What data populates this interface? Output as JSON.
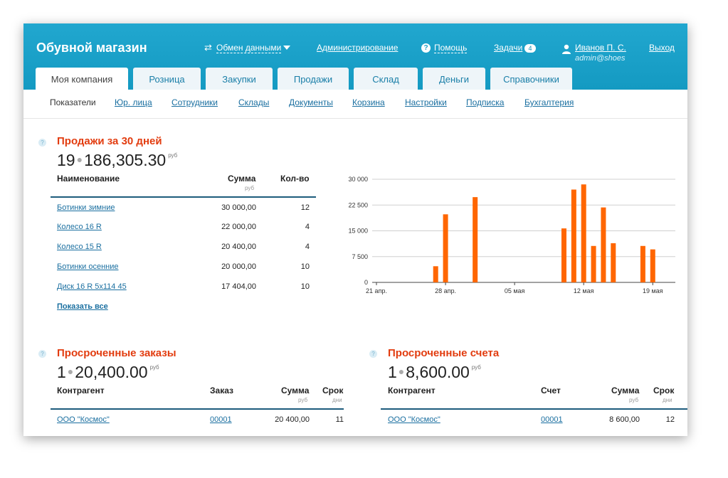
{
  "header": {
    "brand": "Обувной магазин",
    "exchange_label": "Обмен данными",
    "admin_label": "Администрирование",
    "help_label": "Помощь",
    "tasks_label": "Задачи",
    "tasks_count": "4",
    "user_name": "Иванов П. С.",
    "user_email": "admin@shoes",
    "logout_label": "Выход"
  },
  "tabs": [
    {
      "label": "Моя компания",
      "active": true
    },
    {
      "label": "Розница"
    },
    {
      "label": "Закупки"
    },
    {
      "label": "Продажи"
    },
    {
      "label": "Склад"
    },
    {
      "label": "Деньги"
    },
    {
      "label": "Справочники"
    }
  ],
  "subnav": [
    {
      "label": "Показатели",
      "active": true
    },
    {
      "label": "Юр. лица"
    },
    {
      "label": "Сотрудники"
    },
    {
      "label": "Склады"
    },
    {
      "label": "Документы"
    },
    {
      "label": "Корзина"
    },
    {
      "label": "Настройки"
    },
    {
      "label": "Подписка"
    },
    {
      "label": "Бухгалтерия"
    }
  ],
  "help_glyph": "?",
  "sales": {
    "title": "Продажи за 30 дней",
    "count": "19",
    "total": "186,305.30",
    "currency": "руб",
    "columns": {
      "name": "Наименование",
      "sum": "Сумма",
      "sum_unit": "руб",
      "qty": "Кол-во"
    },
    "rows": [
      {
        "name": "Ботинки зимние",
        "sum": "30 000,00",
        "qty": "12"
      },
      {
        "name": "Колесо 16 R",
        "sum": "22 000,00",
        "qty": "4"
      },
      {
        "name": "Колесо 15 R",
        "sum": "20 400,00",
        "qty": "4"
      },
      {
        "name": "Ботинки осенние",
        "sum": "20 000,00",
        "qty": "10"
      },
      {
        "name": "Диск 16 R 5x114 45",
        "sum": "17 404,00",
        "qty": "10"
      }
    ],
    "show_all": "Показать все"
  },
  "chart_data": {
    "type": "bar",
    "x_dates": [
      "2024-04-21",
      "2024-04-22",
      "2024-04-23",
      "2024-04-24",
      "2024-04-25",
      "2024-04-26",
      "2024-04-27",
      "2024-04-28",
      "2024-04-29",
      "2024-04-30",
      "2024-05-01",
      "2024-05-02",
      "2024-05-03",
      "2024-05-04",
      "2024-05-05",
      "2024-05-06",
      "2024-05-07",
      "2024-05-08",
      "2024-05-09",
      "2024-05-10",
      "2024-05-11",
      "2024-05-12",
      "2024-05-13",
      "2024-05-14",
      "2024-05-15",
      "2024-05-16",
      "2024-05-17",
      "2024-05-18",
      "2024-05-19",
      "2024-05-20",
      "2024-05-21"
    ],
    "values": [
      0,
      0,
      0,
      0,
      0,
      0,
      4700,
      19800,
      0,
      0,
      24800,
      0,
      0,
      0,
      0,
      0,
      0,
      0,
      0,
      15700,
      27000,
      28500,
      10600,
      21800,
      11400,
      0,
      0,
      10600,
      9600,
      0,
      0
    ],
    "xticks": [
      "21 апр.",
      "28 апр.",
      "05 мая",
      "12 мая",
      "19 мая"
    ],
    "yticks": [
      "0",
      "7 500",
      "15 000",
      "22 500",
      "30 000"
    ],
    "ylim": [
      0,
      30000
    ],
    "color": "#ff6600",
    "grid": true
  },
  "overdue_orders": {
    "title": "Просроченные заказы",
    "count": "1",
    "total": "20,400.00",
    "currency": "руб",
    "columns": {
      "party": "Контрагент",
      "doc": "Заказ",
      "sum": "Сумма",
      "sum_unit": "руб",
      "term": "Срок",
      "term_unit": "дни"
    },
    "rows": [
      {
        "party": "ООО \"Космос\"",
        "doc": "00001",
        "sum": "20 400,00",
        "term": "11"
      }
    ]
  },
  "overdue_invoices": {
    "title": "Просроченные счета",
    "count": "1",
    "total": "8,600.00",
    "currency": "руб",
    "columns": {
      "party": "Контрагент",
      "doc": "Счет",
      "sum": "Сумма",
      "sum_unit": "руб",
      "term": "Срок",
      "term_unit": "дни"
    },
    "rows": [
      {
        "party": "ООО \"Космос\"",
        "doc": "00001",
        "sum": "8 600,00",
        "term": "12"
      }
    ]
  }
}
